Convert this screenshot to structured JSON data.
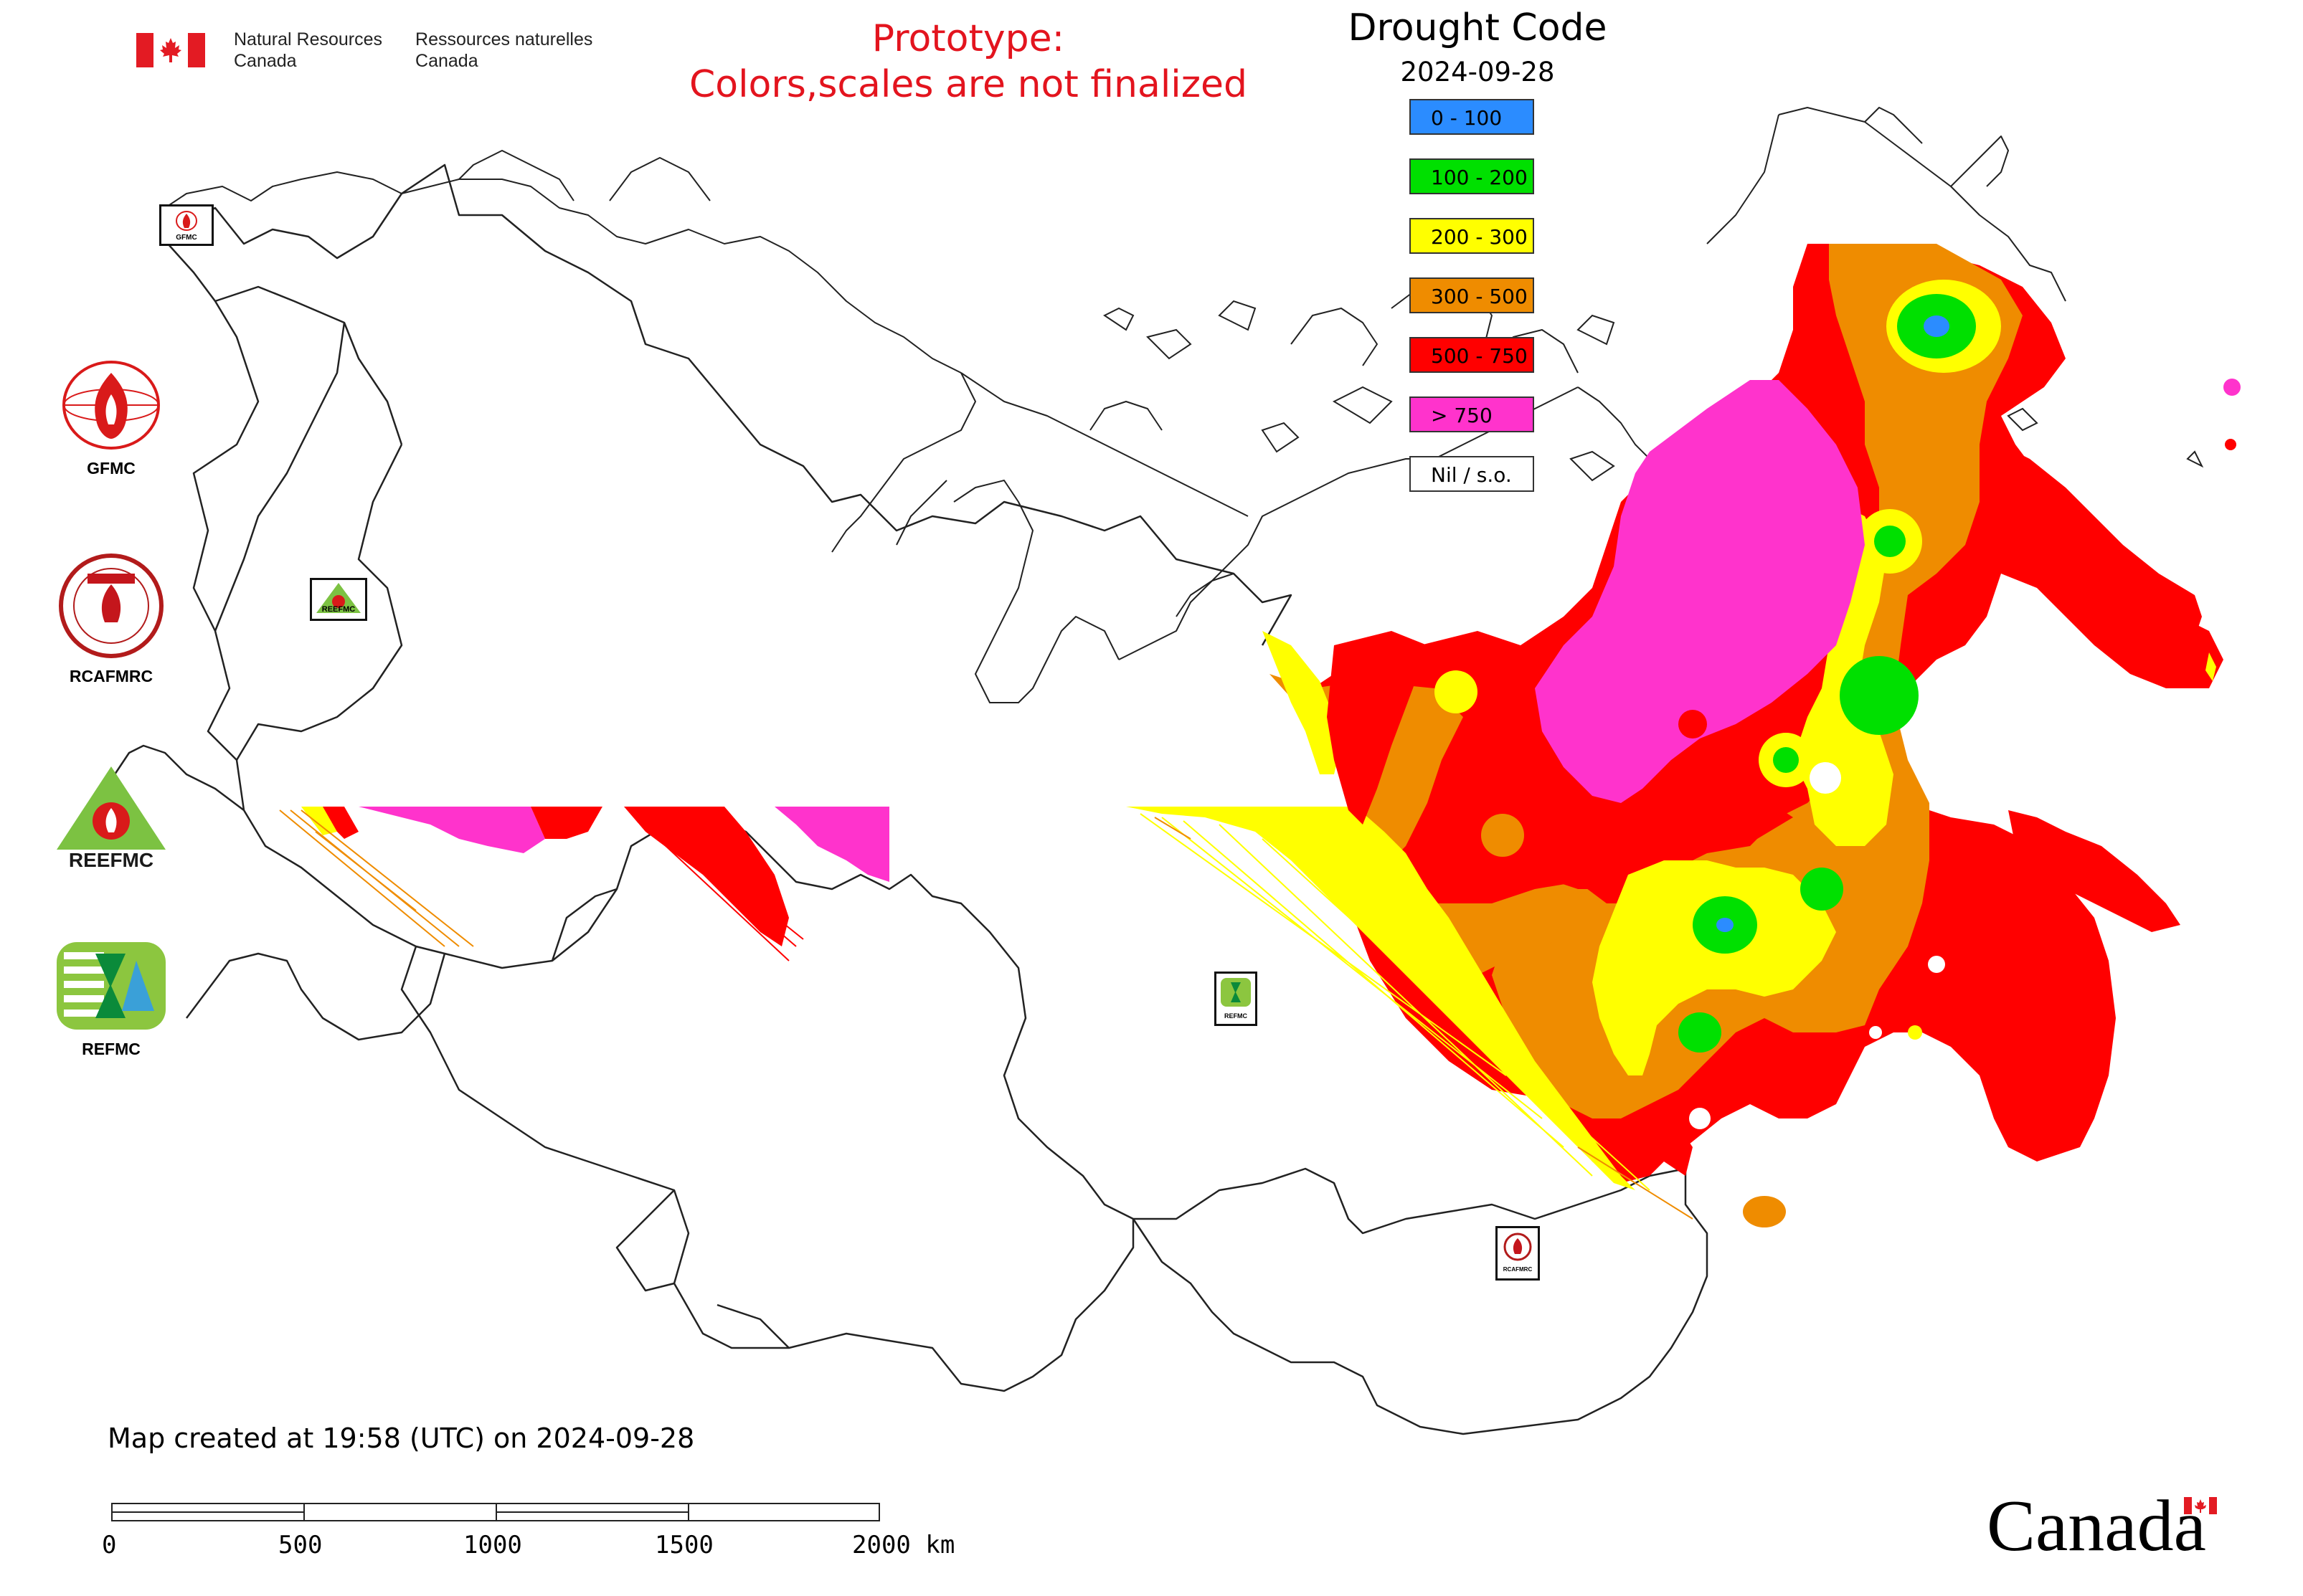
{
  "header": {
    "department_en_line1": "Natural Resources",
    "department_en_line2": "Canada",
    "department_fr_line1": "Ressources naturelles",
    "department_fr_line2": "Canada",
    "prototype_line1": "Prototype:",
    "prototype_line2": "Colors,scales are not finalized"
  },
  "legend": {
    "title": "Drought Code",
    "date": "2024-09-28",
    "classes": [
      {
        "label": "0 - 100",
        "color": "#2b8cff"
      },
      {
        "label": "100 - 200",
        "color": "#00e000"
      },
      {
        "label": "200 - 300",
        "color": "#ffff00"
      },
      {
        "label": "300 - 500",
        "color": "#ef8c00"
      },
      {
        "label": "500 - 750",
        "color": "#ff0000"
      },
      {
        "label": "> 750",
        "color": "#ff33cc"
      },
      {
        "label": "Nil / s.o.",
        "color": "#ffffff"
      }
    ]
  },
  "partners": [
    {
      "caption": "GFMC",
      "icon": "gfmc-logo-icon"
    },
    {
      "caption": "RCAFMRC",
      "icon": "rcafmrc-logo-icon"
    },
    {
      "caption": "",
      "icon": "reefmc-logo-icon",
      "logo_text": "REEFMC"
    },
    {
      "caption": "REFMC",
      "icon": "refmc-logo-icon"
    }
  ],
  "map_markers": [
    {
      "caption": "GFMC",
      "icon": "gfmc-marker-icon"
    },
    {
      "caption": "REEFMC",
      "icon": "reefmc-marker-icon"
    },
    {
      "caption": "REFMC",
      "icon": "refmc-marker-icon"
    },
    {
      "caption": "RCAFMRC",
      "icon": "rcafmrc-marker-icon"
    }
  ],
  "footer": {
    "created_text": "Map created at 19:58 (UTC) on 2024-09-28",
    "scale_labels": [
      "0",
      "500",
      "1000",
      "1500",
      "2000 km"
    ],
    "wordmark": "Canada"
  }
}
